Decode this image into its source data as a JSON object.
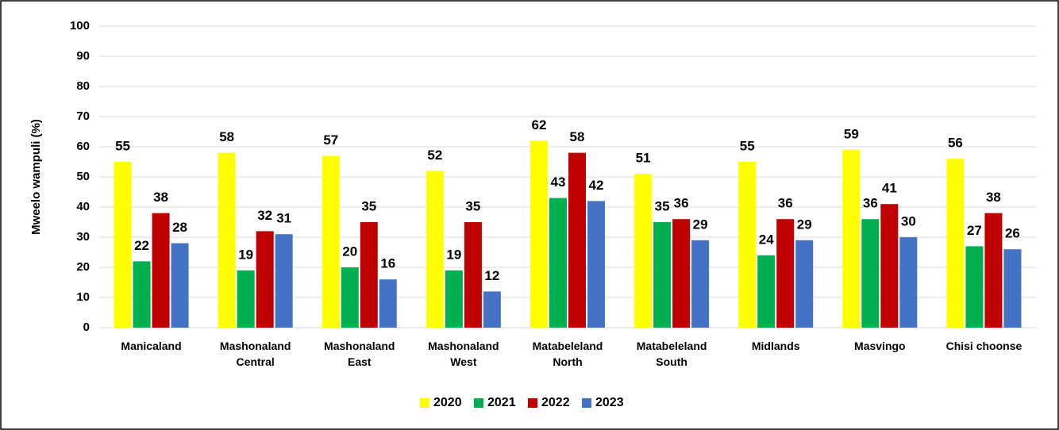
{
  "chart_data": {
    "type": "bar",
    "y_label": "Mweelo wampuli (%)",
    "categories": [
      [
        "Manicaland"
      ],
      [
        "Mashonaland",
        "Central"
      ],
      [
        "Mashonaland",
        "East"
      ],
      [
        "Mashonaland",
        "West"
      ],
      [
        "Matabeleland",
        "North"
      ],
      [
        "Matabeleland",
        "South"
      ],
      [
        "Midlands"
      ],
      [
        "Masvingo"
      ],
      [
        "Chisi choonse"
      ]
    ],
    "series": [
      {
        "name": "2020",
        "color": "#ffff00",
        "values": [
          55,
          58,
          57,
          52,
          62,
          51,
          55,
          59,
          56
        ]
      },
      {
        "name": "2021",
        "color": "#00b050",
        "values": [
          22,
          19,
          20,
          19,
          43,
          35,
          24,
          36,
          27
        ]
      },
      {
        "name": "2022",
        "color": "#c00000",
        "values": [
          38,
          32,
          35,
          35,
          58,
          36,
          36,
          41,
          38
        ]
      },
      {
        "name": "2023",
        "color": "#4472c4",
        "values": [
          28,
          31,
          16,
          12,
          42,
          29,
          29,
          30,
          26
        ]
      }
    ],
    "ylim": [
      0,
      100
    ],
    "yticks": [
      0,
      10,
      20,
      30,
      40,
      50,
      60,
      70,
      80,
      90,
      100
    ],
    "grid": true,
    "legend": "bottom"
  }
}
